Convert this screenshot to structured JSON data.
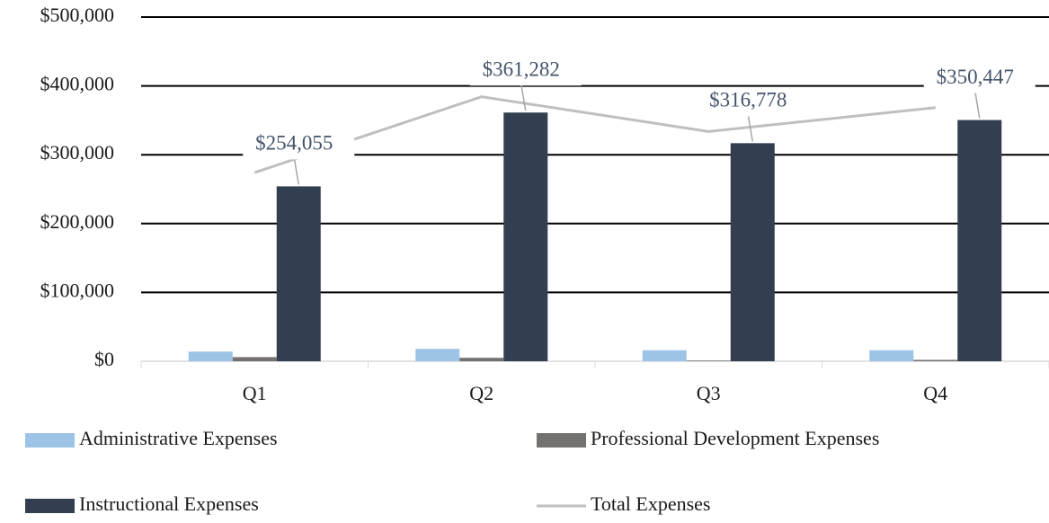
{
  "chart_data": {
    "type": "bar_line",
    "categories": [
      "Q1",
      "Q2",
      "Q3",
      "Q4"
    ],
    "series": [
      {
        "name": "Administrative Expenses",
        "type": "bar",
        "color": "#9dc3e6",
        "values": [
          14000,
          18000,
          16000,
          16000
        ]
      },
      {
        "name": "Professional Development Expenses",
        "type": "bar",
        "color": "#767171",
        "values": [
          6000,
          5000,
          1000,
          2000
        ]
      },
      {
        "name": "Instructional Expenses",
        "type": "bar",
        "color": "#333f50",
        "values": [
          254055,
          361282,
          316778,
          350447
        ],
        "value_labels": [
          "$254,055",
          "$361,282",
          "$316,778",
          "$350,447"
        ]
      },
      {
        "name": "Total Expenses",
        "type": "line",
        "color": "#bfbfbf",
        "values": [
          274055,
          384282,
          333778,
          368447
        ]
      }
    ],
    "ylim": [
      0,
      500000
    ],
    "yticks": [
      {
        "value": 0,
        "label": "$0"
      },
      {
        "value": 100000,
        "label": "$100,000"
      },
      {
        "value": 200000,
        "label": "$200,000"
      },
      {
        "value": 300000,
        "label": "$300,000"
      },
      {
        "value": 400000,
        "label": "$400,000"
      },
      {
        "value": 500000,
        "label": "$500,000"
      }
    ],
    "grid": true,
    "legend": "bottom"
  }
}
